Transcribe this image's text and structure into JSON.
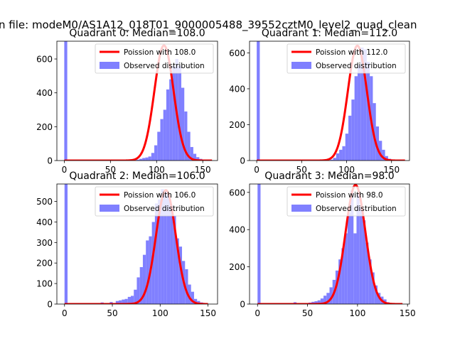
{
  "figure": {
    "suptitle": "n file: modeM0/AS1A12_018T01_9000005488_39552cztM0_level2_quad_clean"
  },
  "colors": {
    "hist": "#8080ff",
    "poisson": "#ff0000",
    "axes": "#000000"
  },
  "chart_data": [
    {
      "type": "bar",
      "title": "Quadrant 0: Median=108.0",
      "xlim": [
        -8,
        166
      ],
      "ylim": [
        0,
        705
      ],
      "xticks": [
        0,
        50,
        100,
        150
      ],
      "yticks": [
        0,
        200,
        400,
        600
      ],
      "legend_position": "top-right",
      "median": 108,
      "poisson_label": "Poission with 108.0",
      "hist_label": "Observed distribution",
      "bin_width": 3.25,
      "x": [
        0,
        3.25,
        6.5,
        9.75,
        13,
        16.25,
        19.5,
        22.75,
        26,
        29.25,
        32.5,
        35.75,
        39,
        42.25,
        45.5,
        48.75,
        52,
        55.25,
        58.5,
        61.75,
        65,
        68.25,
        71.5,
        74.75,
        78,
        81.25,
        84.5,
        87.75,
        91,
        94.25,
        97.5,
        100.75,
        104,
        107.25,
        110.5,
        113.75,
        117,
        120.25,
        123.5,
        126.75,
        130,
        133.25,
        136.5,
        139.75,
        143,
        146.25,
        149.5,
        152.75
      ],
      "values": [
        705,
        0,
        0,
        0,
        0,
        0,
        0,
        0,
        0,
        0,
        0,
        0,
        0,
        0,
        0,
        0,
        0,
        0,
        0,
        0,
        0,
        0,
        0,
        0,
        5,
        10,
        15,
        18,
        24,
        45,
        90,
        170,
        245,
        300,
        420,
        480,
        560,
        600,
        560,
        430,
        290,
        170,
        80,
        40,
        20,
        10,
        3,
        1
      ],
      "poisson_curve": {
        "x_from": 0,
        "x_to": 160,
        "peak": 680
      }
    },
    {
      "type": "bar",
      "title": "Quadrant 1: Median=112.0",
      "xlim": [
        -8,
        170
      ],
      "ylim": [
        0,
        665
      ],
      "xticks": [
        0,
        50,
        100,
        150
      ],
      "yticks": [
        0,
        200,
        400,
        600
      ],
      "legend_position": "top-right",
      "median": 112,
      "poisson_label": "Poission with 112.0",
      "hist_label": "Observed distribution",
      "bin_width": 3.4,
      "x": [
        0,
        3.4,
        6.8,
        10.2,
        13.6,
        17,
        20.4,
        23.8,
        27.2,
        30.6,
        34,
        37.4,
        40.8,
        44.2,
        47.6,
        51,
        54.4,
        57.8,
        61.2,
        64.6,
        68,
        71.4,
        74.8,
        78.2,
        81.6,
        85,
        88.4,
        91.8,
        95.2,
        98.6,
        102,
        105.4,
        108.8,
        112.2,
        115.6,
        119,
        122.4,
        125.8,
        129.2,
        132.6,
        136,
        139.4,
        142.8,
        146.2,
        149.6,
        153,
        156.4,
        159.8
      ],
      "values": [
        665,
        0,
        0,
        0,
        0,
        0,
        0,
        0,
        0,
        0,
        0,
        0,
        0,
        0,
        0,
        0,
        0,
        0,
        0,
        0,
        0,
        0,
        0,
        0,
        5,
        15,
        40,
        60,
        80,
        150,
        250,
        340,
        470,
        530,
        630,
        620,
        550,
        470,
        320,
        190,
        110,
        60,
        25,
        10,
        4,
        2,
        1,
        0
      ],
      "poisson_curve": {
        "x_from": 0,
        "x_to": 165,
        "peak": 640
      }
    },
    {
      "type": "bar",
      "title": "Quadrant 2: Median=106.0",
      "xlim": [
        -8,
        160
      ],
      "ylim": [
        0,
        585
      ],
      "xticks": [
        0,
        50,
        100,
        150
      ],
      "yticks": [
        0,
        100,
        200,
        300,
        400,
        500
      ],
      "legend_position": "top-right",
      "median": 106,
      "poisson_label": "Poission with 106.0",
      "hist_label": "Observed distribution",
      "bin_width": 3.15,
      "x": [
        0,
        3.15,
        6.3,
        9.45,
        12.6,
        15.75,
        18.9,
        22.05,
        25.2,
        28.35,
        31.5,
        34.65,
        37.8,
        40.95,
        44.1,
        47.25,
        50.4,
        53.55,
        56.7,
        59.85,
        63,
        66.15,
        69.3,
        72.45,
        75.6,
        78.75,
        81.9,
        85.05,
        88.2,
        91.35,
        94.5,
        97.65,
        100.8,
        103.95,
        107.1,
        110.25,
        113.4,
        116.55,
        119.7,
        122.85,
        126,
        129.15,
        132.3,
        135.45,
        138.6,
        141.75,
        144.9,
        148.05
      ],
      "values": [
        585,
        0,
        0,
        0,
        0,
        0,
        0,
        0,
        0,
        0,
        0,
        5,
        8,
        0,
        0,
        10,
        5,
        15,
        18,
        22,
        25,
        35,
        40,
        70,
        130,
        180,
        240,
        310,
        330,
        400,
        490,
        510,
        560,
        550,
        530,
        480,
        430,
        320,
        280,
        210,
        170,
        95,
        60,
        25,
        15,
        8,
        3,
        1
      ],
      "poisson_curve": {
        "x_from": 0,
        "x_to": 150,
        "peak": 555
      }
    },
    {
      "type": "bar",
      "title": "Quadrant 3: Median=98.0",
      "xlim": [
        -8,
        152
      ],
      "ylim": [
        0,
        645
      ],
      "xticks": [
        0,
        50,
        100,
        150
      ],
      "yticks": [
        0,
        200,
        400,
        600
      ],
      "legend_position": "top-right",
      "median": 98,
      "poisson_label": "Poission with 98.0",
      "hist_label": "Observed distribution",
      "bin_width": 3.0,
      "x": [
        0,
        3,
        6,
        9,
        12,
        15,
        18,
        21,
        24,
        27,
        30,
        33,
        36,
        39,
        42,
        45,
        48,
        51,
        54,
        57,
        60,
        63,
        66,
        69,
        72,
        75,
        78,
        81,
        84,
        87,
        90,
        93,
        96,
        99,
        102,
        105,
        108,
        111,
        114,
        117,
        120,
        123,
        126,
        129,
        132,
        135,
        138,
        141
      ],
      "values": [
        645,
        0,
        0,
        0,
        0,
        0,
        0,
        0,
        0,
        0,
        0,
        0,
        10,
        0,
        0,
        0,
        5,
        8,
        12,
        15,
        20,
        30,
        45,
        60,
        90,
        130,
        180,
        240,
        300,
        380,
        490,
        610,
        380,
        590,
        520,
        450,
        330,
        240,
        170,
        100,
        60,
        40,
        25,
        10,
        5,
        2,
        1,
        0
      ],
      "poisson_curve": {
        "x_from": 0,
        "x_to": 145,
        "peak": 640
      }
    }
  ]
}
